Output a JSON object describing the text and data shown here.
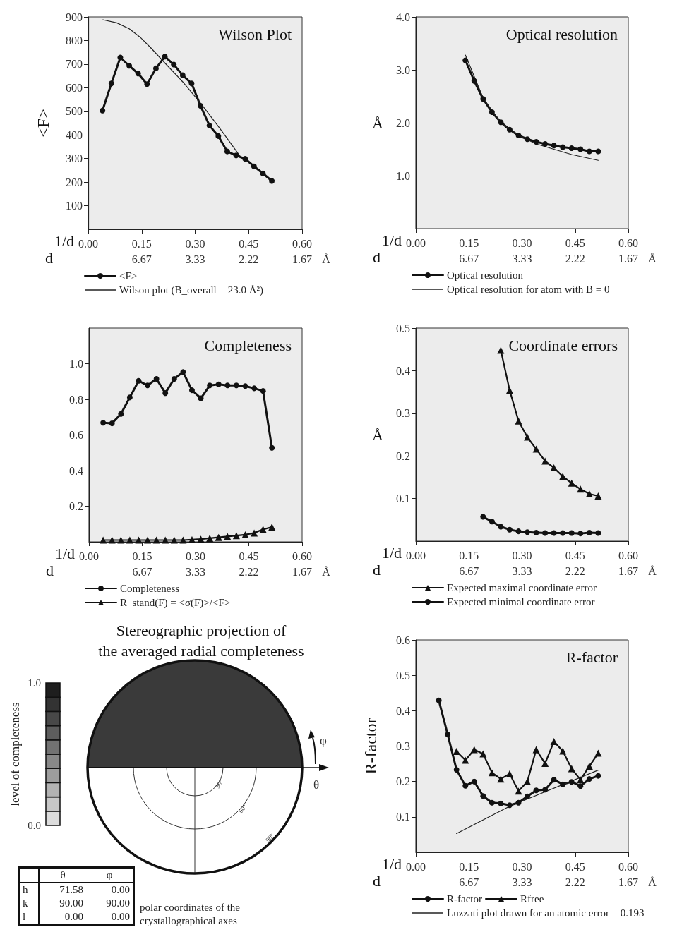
{
  "chart_data": [
    {
      "type": "line",
      "title": "Wilson Plot",
      "xlabel": "1/d",
      "ylabel": "<F>",
      "annotations": [
        "d",
        "6.67",
        "3.33",
        "2.22",
        "1.67",
        "Å"
      ],
      "xlim": [
        0,
        0.6
      ],
      "xticks": [
        {
          "value": 0,
          "label": "0.00"
        },
        0.15,
        {
          "value": 0.3,
          "label": "0.30"
        },
        0.45,
        {
          "value": 0.6,
          "label": "0.60"
        }
      ],
      "ylim": [
        0,
        900
      ],
      "yticks": [
        100,
        200,
        300,
        400,
        500,
        600,
        700,
        800,
        900
      ],
      "grid": false,
      "legend": "bottom",
      "series": [
        {
          "name": "<F>",
          "color": "#111111",
          "marker": "circle",
          "x": [
            0.04,
            0.065,
            0.09,
            0.115,
            0.14,
            0.165,
            0.19,
            0.215,
            0.24,
            0.265,
            0.29,
            0.315,
            0.34,
            0.365,
            0.39,
            0.415,
            0.44,
            0.465,
            0.49,
            0.515
          ],
          "values": [
            503,
            618,
            728,
            693,
            660,
            615,
            682,
            732,
            698,
            653,
            618,
            523,
            440,
            395,
            330,
            313,
            299,
            267,
            237,
            205
          ]
        },
        {
          "name": "Wilson plot (B_overall = 23.0 Å²)",
          "color": "#222222",
          "marker": "none",
          "x": [
            0.041,
            0.08,
            0.115,
            0.145,
            0.175,
            0.215,
            0.265,
            0.315,
            0.368,
            0.426
          ],
          "values": [
            888,
            875,
            850,
            815,
            770,
            705,
            625,
            535,
            430,
            310
          ]
        }
      ]
    },
    {
      "type": "line",
      "title": "Optical resolution",
      "xlabel": "1/d",
      "ylabel": "Å",
      "annotations": [
        "d",
        "6.67",
        "3.33",
        "2.22",
        "1.67",
        "Å"
      ],
      "xlim": [
        0,
        0.6
      ],
      "xticks": [
        {
          "value": 0,
          "label": "0.00"
        },
        0.15,
        {
          "value": 0.3,
          "label": "0.30"
        },
        0.45,
        {
          "value": 0.6,
          "label": "0.60"
        }
      ],
      "ylim": [
        0,
        4
      ],
      "yticks": [
        {
          "value": 1,
          "label": "1.0"
        },
        {
          "value": 2,
          "label": "2.0"
        },
        {
          "value": 3,
          "label": "3.0"
        },
        {
          "value": 4,
          "label": "4.0"
        }
      ],
      "grid": false,
      "legend": "bottom",
      "series": [
        {
          "name": "Optical resolution",
          "color": "#111111",
          "marker": "circle",
          "x": [
            0.14,
            0.165,
            0.19,
            0.215,
            0.24,
            0.265,
            0.29,
            0.315,
            0.34,
            0.365,
            0.39,
            0.415,
            0.44,
            0.465,
            0.49,
            0.515
          ],
          "values": [
            3.18,
            2.79,
            2.45,
            2.2,
            2.01,
            1.87,
            1.76,
            1.69,
            1.64,
            1.6,
            1.57,
            1.54,
            1.52,
            1.5,
            1.46,
            1.46
          ]
        },
        {
          "name": "Optical resolution for atom with B = 0",
          "color": "#222222",
          "marker": "none",
          "x": [
            0.14,
            0.19,
            0.24,
            0.29,
            0.34,
            0.39,
            0.44,
            0.515
          ],
          "values": [
            3.28,
            2.47,
            2.0,
            1.76,
            1.6,
            1.5,
            1.4,
            1.29
          ]
        }
      ]
    },
    {
      "type": "line",
      "title": "Completeness",
      "xlabel": "1/d",
      "annotations": [
        "d",
        "6.67",
        "3.33",
        "2.22",
        "1.67",
        "Å"
      ],
      "xlim": [
        0,
        0.6
      ],
      "xticks": [
        {
          "value": 0,
          "label": "0.00"
        },
        0.15,
        {
          "value": 0.3,
          "label": "0.30"
        },
        0.45,
        {
          "value": 0.6,
          "label": "0.60"
        }
      ],
      "ylim": [
        0,
        1.2
      ],
      "yticks": [
        0.2,
        0.4,
        0.6,
        0.8,
        {
          "value": 1,
          "label": "1.0"
        }
      ],
      "grid": false,
      "legend": "bottom",
      "series": [
        {
          "name": "Completeness",
          "color": "#111111",
          "marker": "circle",
          "x": [
            0.04,
            0.065,
            0.09,
            0.115,
            0.14,
            0.165,
            0.19,
            0.215,
            0.24,
            0.265,
            0.29,
            0.315,
            0.34,
            0.365,
            0.39,
            0.415,
            0.44,
            0.465,
            0.49,
            0.515
          ],
          "values": [
            0.668,
            0.665,
            0.718,
            0.811,
            0.904,
            0.878,
            0.915,
            0.835,
            0.915,
            0.953,
            0.851,
            0.806,
            0.878,
            0.884,
            0.878,
            0.878,
            0.874,
            0.862,
            0.847,
            0.528
          ]
        },
        {
          "name": "R_stand(F) = <σ(F)>/<F>",
          "color": "#111111",
          "marker": "triangle",
          "x": [
            0.04,
            0.065,
            0.09,
            0.115,
            0.14,
            0.165,
            0.19,
            0.215,
            0.24,
            0.265,
            0.29,
            0.315,
            0.34,
            0.365,
            0.39,
            0.415,
            0.44,
            0.465,
            0.49,
            0.515
          ],
          "values": [
            0.01,
            0.01,
            0.01,
            0.01,
            0.01,
            0.01,
            0.01,
            0.01,
            0.01,
            0.01,
            0.012,
            0.015,
            0.02,
            0.025,
            0.03,
            0.035,
            0.04,
            0.05,
            0.07,
            0.083
          ]
        }
      ]
    },
    {
      "type": "line",
      "title": "Coordinate errors",
      "xlabel": "1/d",
      "ylabel": "Å",
      "annotations": [
        "d",
        "6.67",
        "3.33",
        "2.22",
        "1.67",
        "Å"
      ],
      "xlim": [
        0,
        0.6
      ],
      "xticks": [
        {
          "value": 0,
          "label": "0.00"
        },
        0.15,
        {
          "value": 0.3,
          "label": "0.30"
        },
        0.45,
        {
          "value": 0.6,
          "label": "0.60"
        }
      ],
      "ylim": [
        0,
        0.5
      ],
      "yticks": [
        0.1,
        0.2,
        0.3,
        0.4,
        0.5
      ],
      "grid": false,
      "legend": "bottom",
      "series": [
        {
          "name": "Expected maximal coordinate error",
          "color": "#111111",
          "marker": "triangle",
          "x": [
            0.24,
            0.265,
            0.29,
            0.315,
            0.34,
            0.365,
            0.39,
            0.415,
            0.44,
            0.465,
            0.49,
            0.515
          ],
          "values": [
            0.448,
            0.354,
            0.282,
            0.244,
            0.216,
            0.188,
            0.172,
            0.152,
            0.136,
            0.122,
            0.111,
            0.106
          ]
        },
        {
          "name": "Expected minimal coordinate error",
          "color": "#111111",
          "marker": "circle",
          "x": [
            0.19,
            0.215,
            0.24,
            0.265,
            0.29,
            0.315,
            0.34,
            0.365,
            0.39,
            0.415,
            0.44,
            0.465,
            0.49,
            0.515
          ],
          "values": [
            0.057,
            0.046,
            0.034,
            0.027,
            0.023,
            0.021,
            0.02,
            0.019,
            0.019,
            0.019,
            0.019,
            0.018,
            0.02,
            0.019
          ]
        }
      ]
    },
    {
      "type": "other",
      "title": "Stereographic projection of\nthe averaged radial completeness",
      "clabel": "level of completeness",
      "annotations": [
        "θ",
        "φ",
        "h",
        "71.58",
        "0.00",
        "k",
        "90.00",
        "90.00",
        "l",
        "0.00",
        "0.00",
        "polar coordinates of the crystallographical axes",
        "30°",
        "60°",
        "90°",
        "θ",
        "φ",
        "1.0",
        "0.0"
      ]
    },
    {
      "type": "line",
      "title": "R-factor",
      "xlabel": "1/d",
      "ylabel": "R-factor",
      "annotations": [
        "d",
        "6.67",
        "3.33",
        "2.22",
        "1.67",
        "Å"
      ],
      "xlim": [
        0,
        0.6
      ],
      "xticks": [
        {
          "value": 0,
          "label": "0.00"
        },
        0.15,
        {
          "value": 0.3,
          "label": "0.30"
        },
        0.45,
        {
          "value": 0.6,
          "label": "0.60"
        }
      ],
      "ylim": [
        0,
        0.6
      ],
      "yticks": [
        0.1,
        0.2,
        0.3,
        0.4,
        0.5,
        0.6
      ],
      "grid": false,
      "legend": "bottom",
      "series": [
        {
          "name": "R-factor",
          "color": "#111111",
          "marker": "circle",
          "x": [
            0.065,
            0.09,
            0.115,
            0.14,
            0.165,
            0.19,
            0.215,
            0.24,
            0.265,
            0.29,
            0.315,
            0.34,
            0.365,
            0.39,
            0.415,
            0.44,
            0.465,
            0.49,
            0.515
          ],
          "values": [
            0.429,
            0.333,
            0.233,
            0.188,
            0.2,
            0.159,
            0.14,
            0.138,
            0.133,
            0.14,
            0.158,
            0.175,
            0.177,
            0.205,
            0.192,
            0.199,
            0.187,
            0.207,
            0.216
          ]
        },
        {
          "name": "Rfree",
          "color": "#111111",
          "marker": "triangle",
          "x": [
            0.115,
            0.14,
            0.165,
            0.19,
            0.215,
            0.24,
            0.265,
            0.29,
            0.315,
            0.34,
            0.365,
            0.39,
            0.415,
            0.44,
            0.465,
            0.49,
            0.515
          ],
          "values": [
            0.285,
            0.26,
            0.29,
            0.278,
            0.225,
            0.207,
            0.222,
            0.173,
            0.2,
            0.29,
            0.251,
            0.313,
            0.286,
            0.236,
            0.205,
            0.243,
            0.28
          ]
        },
        {
          "name": "Luzzati plot drawn for an atomic error = 0.193",
          "color": "#222222",
          "marker": "none",
          "x": [
            0.115,
            0.265,
            0.515
          ],
          "values": [
            0.053,
            0.13,
            0.232
          ]
        }
      ]
    }
  ]
}
